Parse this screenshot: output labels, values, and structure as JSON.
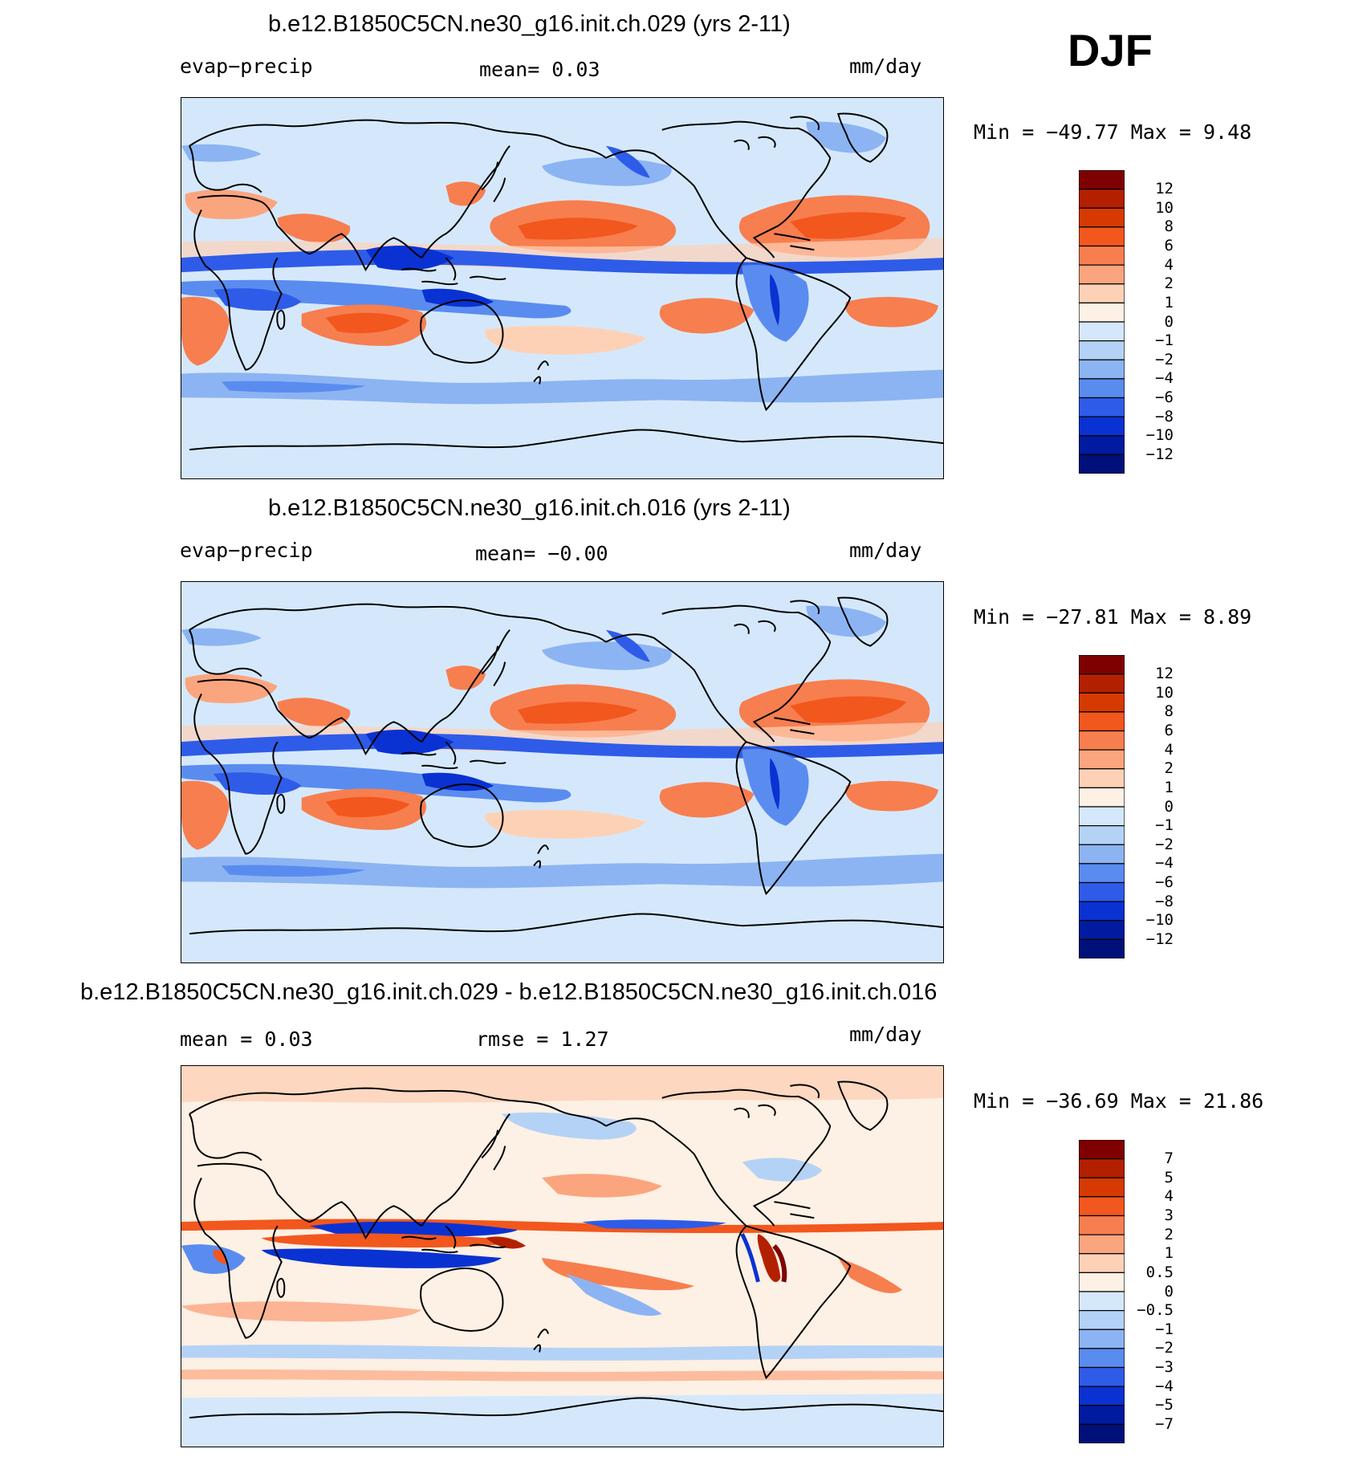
{
  "season": "DJF",
  "panels": [
    {
      "title": "b.e12.B1850C5CN.ne30_g16.init.ch.029 (yrs 2-11)",
      "left_label": "evap−precip",
      "center_label": "mean=    0.03",
      "units": "mm/day",
      "minmax": "Min  =  −49.77  Max  =    9.48",
      "colorbar_labels": [
        "12",
        "10",
        "8",
        "6",
        "4",
        "2",
        "1",
        "0",
        "−1",
        "−2",
        "−4",
        "−6",
        "−8",
        "−10",
        "−12"
      ]
    },
    {
      "title": "b.e12.B1850C5CN.ne30_g16.init.ch.016 (yrs 2-11)",
      "left_label": "evap−precip",
      "center_label": "mean=   −0.00",
      "units": "mm/day",
      "minmax": "Min  =  −27.81  Max  =    8.89",
      "colorbar_labels": [
        "12",
        "10",
        "8",
        "6",
        "4",
        "2",
        "1",
        "0",
        "−1",
        "−2",
        "−4",
        "−6",
        "−8",
        "−10",
        "−12"
      ]
    },
    {
      "title": "b.e12.B1850C5CN.ne30_g16.init.ch.029 - b.e12.B1850C5CN.ne30_g16.init.ch.016",
      "left_label": "mean  =    0.03",
      "center_label": "rmse  =    1.27",
      "units": "mm/day",
      "minmax": "Min  =  −36.69  Max  =   21.86",
      "colorbar_labels": [
        "7",
        "5",
        "4",
        "3",
        "2",
        "1",
        "0.5",
        "0",
        "−0.5",
        "−1",
        "−2",
        "−3",
        "−4",
        "−5",
        "−7"
      ]
    }
  ],
  "colors": {
    "scale": [
      "#7f0000",
      "#b32000",
      "#d63a00",
      "#f2571e",
      "#f77e4f",
      "#fba57f",
      "#fdd1b6",
      "#fdf0e4",
      "#d5e8fb",
      "#b4d2f6",
      "#8cb4f3",
      "#5a8cf0",
      "#2e5ce8",
      "#0a32d2",
      "#001b9f",
      "#00107a"
    ]
  }
}
